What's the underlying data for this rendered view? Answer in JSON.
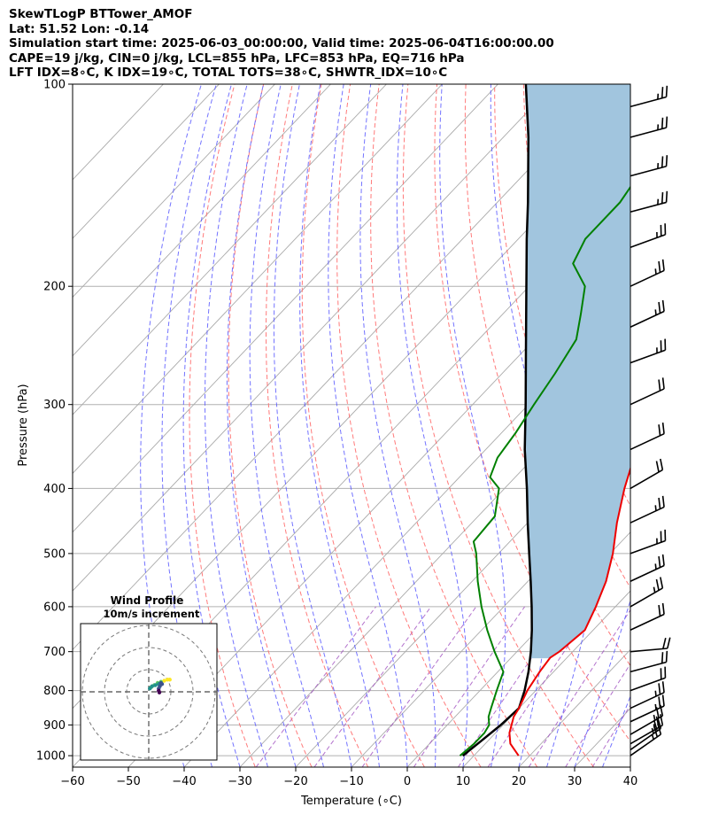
{
  "header": {
    "line1": "SkewTLogP BTTower_AMOF",
    "line2": "Lat: 51.52   Lon: -0.14",
    "line3": "Simulation start time: 2025-06-03_00:00:00, Valid time: 2025-06-04T16:00:00.00",
    "line4": "CAPE=19 j/kg, CIN=0 j/kg, LCL=855 hPa, LFC=853 hPa, EQ=716 hPa",
    "line5": "LFT IDX=8∘C, K IDX=19∘C, TOTAL TOTS=38∘C, SHWTR_IDX=10∘C"
  },
  "chart_data": [
    {
      "type": "line",
      "subtype": "skew-t log-p",
      "xlabel": "Temperature (∘C)",
      "ylabel": "Pressure (hPa)",
      "xlim": [
        -60,
        40
      ],
      "ylim": [
        1040,
        100
      ],
      "y_scale": "log",
      "grid": true,
      "x_ticks": [
        -60,
        -50,
        -40,
        -30,
        -20,
        -10,
        0,
        10,
        20,
        30,
        40
      ],
      "y_ticks": [
        100,
        200,
        300,
        400,
        500,
        600,
        700,
        800,
        900,
        1000
      ],
      "colors": {
        "temperature": "#ee0000",
        "dewpoint": "#008000",
        "parcel": "#000000",
        "cape_fill": "#a1c5de",
        "dry_adiabats": "#ff6b6b",
        "moist_adiabats": "#5b5bff",
        "mixing_ratio": "#a050c0",
        "isotherms": "#aaaaaa"
      },
      "series": [
        {
          "key": "temperature",
          "points": [
            [
              1000,
              18
            ],
            [
              960,
              14.5
            ],
            [
              925,
              12.5
            ],
            [
              875,
              10.5
            ],
            [
              850,
              10
            ],
            [
              800,
              8.5
            ],
            [
              750,
              7.5
            ],
            [
              715,
              7
            ],
            [
              700,
              7.6
            ],
            [
              650,
              8.5
            ],
            [
              600,
              6.5
            ],
            [
              550,
              4
            ],
            [
              500,
              0.5
            ],
            [
              450,
              -4
            ],
            [
              400,
              -8.5
            ],
            [
              350,
              -13
            ],
            [
              300,
              -17.5
            ],
            [
              250,
              -21.5
            ],
            [
              230,
              -22
            ],
            [
              210,
              -22.5
            ],
            [
              200,
              -23
            ],
            [
              190,
              -23.5
            ],
            [
              170,
              -26
            ],
            [
              150,
              -28.5
            ],
            [
              130,
              -33.5
            ],
            [
              120,
              -36.5
            ],
            [
              110,
              -40
            ],
            [
              100,
              -43
            ]
          ]
        },
        {
          "key": "dewpoint",
          "points": [
            [
              1000,
              7.5
            ],
            [
              960,
              8
            ],
            [
              925,
              8
            ],
            [
              900,
              7.5
            ],
            [
              875,
              6
            ],
            [
              850,
              5
            ],
            [
              800,
              3
            ],
            [
              750,
              1
            ],
            [
              700,
              -4
            ],
            [
              650,
              -9
            ],
            [
              600,
              -14
            ],
            [
              550,
              -19
            ],
            [
              500,
              -24
            ],
            [
              480,
              -26.5
            ],
            [
              440,
              -27
            ],
            [
              400,
              -31
            ],
            [
              385,
              -34.5
            ],
            [
              360,
              -36.5
            ],
            [
              330,
              -37.5
            ],
            [
              300,
              -39
            ],
            [
              270,
              -40.5
            ],
            [
              240,
              -42.5
            ],
            [
              220,
              -46
            ],
            [
              200,
              -50
            ],
            [
              185,
              -56
            ],
            [
              170,
              -58
            ],
            [
              150,
              -58
            ],
            [
              130,
              -60
            ],
            [
              110,
              -63
            ],
            [
              100,
              -66
            ]
          ]
        },
        {
          "key": "parcel",
          "points": [
            [
              1000,
              8
            ],
            [
              950,
              8.8
            ],
            [
              900,
              9.6
            ],
            [
              850,
              10
            ],
            [
              800,
              8
            ],
            [
              750,
              5.5
            ],
            [
              700,
              2.5
            ],
            [
              650,
              -1
            ],
            [
              600,
              -5
            ],
            [
              550,
              -9.5
            ],
            [
              500,
              -14.5
            ],
            [
              450,
              -20
            ],
            [
              400,
              -26
            ],
            [
              350,
              -33
            ],
            [
              300,
              -40.5
            ],
            [
              250,
              -49.5
            ],
            [
              200,
              -60.5
            ],
            [
              170,
              -68.5
            ],
            [
              150,
              -74.5
            ],
            [
              120,
              -85.5
            ],
            [
              100,
              -95
            ]
          ]
        }
      ],
      "wind_barbs": {
        "speed_units": "knots",
        "levels": [
          {
            "p": 1000,
            "speed": 25,
            "direction": 235
          },
          {
            "p": 980,
            "speed": 25,
            "direction": 235
          },
          {
            "p": 960,
            "speed": 25,
            "direction": 240
          },
          {
            "p": 930,
            "speed": 25,
            "direction": 240
          },
          {
            "p": 890,
            "speed": 25,
            "direction": 245
          },
          {
            "p": 850,
            "speed": 25,
            "direction": 245
          },
          {
            "p": 800,
            "speed": 20,
            "direction": 250
          },
          {
            "p": 750,
            "speed": 20,
            "direction": 255
          },
          {
            "p": 700,
            "speed": 20,
            "direction": 265
          },
          {
            "p": 650,
            "speed": 20,
            "direction": 245
          },
          {
            "p": 600,
            "speed": 25,
            "direction": 240
          },
          {
            "p": 550,
            "speed": 25,
            "direction": 245
          },
          {
            "p": 500,
            "speed": 25,
            "direction": 250
          },
          {
            "p": 450,
            "speed": 25,
            "direction": 245
          },
          {
            "p": 400,
            "speed": 20,
            "direction": 240
          },
          {
            "p": 350,
            "speed": 20,
            "direction": 245
          },
          {
            "p": 300,
            "speed": 20,
            "direction": 245
          },
          {
            "p": 260,
            "speed": 25,
            "direction": 250
          },
          {
            "p": 230,
            "speed": 25,
            "direction": 245
          },
          {
            "p": 200,
            "speed": 25,
            "direction": 245
          },
          {
            "p": 175,
            "speed": 25,
            "direction": 250
          },
          {
            "p": 155,
            "speed": 25,
            "direction": 255
          },
          {
            "p": 137,
            "speed": 25,
            "direction": 255
          },
          {
            "p": 120,
            "speed": 25,
            "direction": 255
          },
          {
            "p": 108,
            "speed": 25,
            "direction": 255
          }
        ]
      }
    },
    {
      "type": "scatter",
      "subtype": "hodograph",
      "title": "Wind Profile",
      "subtitle": "10m/s increment",
      "grid": true,
      "rings": [
        10,
        20,
        30
      ],
      "points": [
        [
          9.5,
          5.5
        ],
        [
          8.5,
          5.5
        ],
        [
          7,
          5
        ],
        [
          5.5,
          4.5
        ],
        [
          4,
          4
        ],
        [
          2.5,
          3
        ],
        [
          1,
          2
        ],
        [
          0.5,
          1.5
        ],
        [
          1.5,
          2.5
        ],
        [
          3,
          3
        ],
        [
          4.5,
          3.5
        ],
        [
          5.5,
          4
        ],
        [
          6,
          3.5
        ],
        [
          5,
          2.5
        ],
        [
          4.5,
          1.5
        ],
        [
          4.5,
          0.5
        ],
        [
          4.8,
          -0.3
        ]
      ]
    }
  ]
}
